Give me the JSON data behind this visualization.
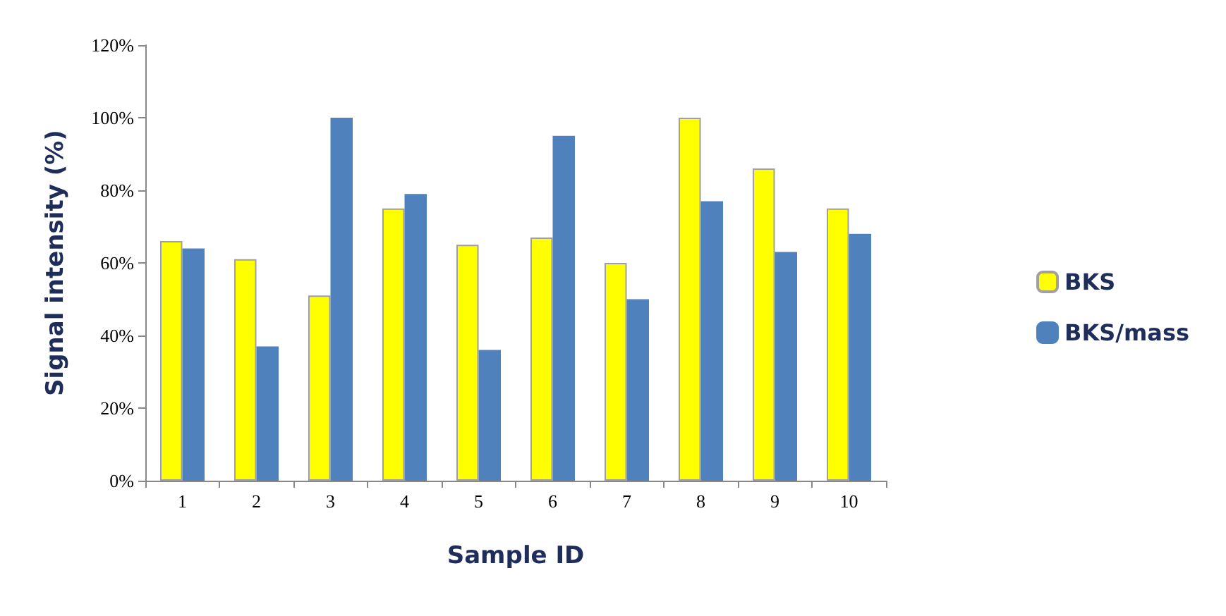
{
  "chart_data": {
    "type": "bar",
    "xlabel": "Sample ID",
    "ylabel": "Signal intensity (%)",
    "categories": [
      "1",
      "2",
      "3",
      "4",
      "5",
      "6",
      "7",
      "8",
      "9",
      "10"
    ],
    "series": [
      {
        "name": "BKS",
        "color": "#ffff00",
        "values": [
          66,
          61,
          51,
          75,
          65,
          67,
          60,
          100,
          86,
          75
        ]
      },
      {
        "name": "BKS/mass",
        "color": "#4f81bd",
        "values": [
          64,
          37,
          100,
          79,
          36,
          95,
          50,
          77,
          63,
          68
        ]
      }
    ],
    "ylim": [
      0,
      120
    ],
    "yticks": [
      {
        "value": 0,
        "label": "0%"
      },
      {
        "value": 20,
        "label": "20%"
      },
      {
        "value": 40,
        "label": "40%"
      },
      {
        "value": 60,
        "label": "60%"
      },
      {
        "value": 80,
        "label": "80%"
      },
      {
        "value": 100,
        "label": "100%"
      },
      {
        "value": 120,
        "label": "120%"
      }
    ],
    "grid": false,
    "legend": "right"
  }
}
